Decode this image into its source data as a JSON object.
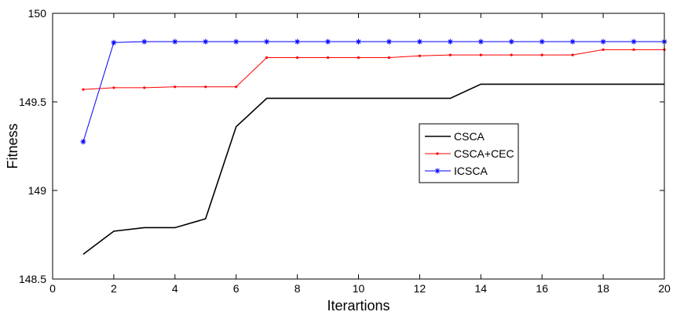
{
  "chart_data": {
    "type": "line",
    "xlabel": "Iterartions",
    "ylabel": "Fitness",
    "xlim": [
      0,
      20
    ],
    "ylim": [
      148.5,
      150
    ],
    "x_ticks": [
      "0",
      "2",
      "4",
      "6",
      "8",
      "10",
      "12",
      "14",
      "16",
      "18",
      "20"
    ],
    "y_ticks": [
      "148.5",
      "149",
      "149.5",
      "150"
    ],
    "grid": false,
    "legend_position": "center-right",
    "x": [
      1,
      2,
      3,
      4,
      5,
      6,
      7,
      8,
      9,
      10,
      11,
      12,
      13,
      14,
      15,
      16,
      17,
      18,
      19,
      20
    ],
    "series": [
      {
        "name": "CSCA",
        "color": "#000000",
        "marker": "none",
        "values": [
          148.64,
          148.77,
          148.79,
          148.79,
          148.84,
          149.36,
          149.52,
          149.52,
          149.52,
          149.52,
          149.52,
          149.52,
          149.52,
          149.6,
          149.6,
          149.6,
          149.6,
          149.6,
          149.6,
          149.6
        ]
      },
      {
        "name": "CSCA+CEC",
        "color": "#ff0000",
        "marker": "dot",
        "values": [
          149.57,
          149.58,
          149.58,
          149.585,
          149.585,
          149.585,
          149.75,
          149.75,
          149.75,
          149.75,
          149.75,
          149.76,
          149.765,
          149.765,
          149.765,
          149.765,
          149.765,
          149.795,
          149.795,
          149.795
        ]
      },
      {
        "name": "ICSCA",
        "color": "#0000ff",
        "marker": "star",
        "values": [
          149.275,
          149.835,
          149.84,
          149.84,
          149.84,
          149.84,
          149.84,
          149.84,
          149.84,
          149.84,
          149.84,
          149.84,
          149.84,
          149.84,
          149.84,
          149.84,
          149.84,
          149.84,
          149.84,
          149.84
        ]
      }
    ]
  }
}
